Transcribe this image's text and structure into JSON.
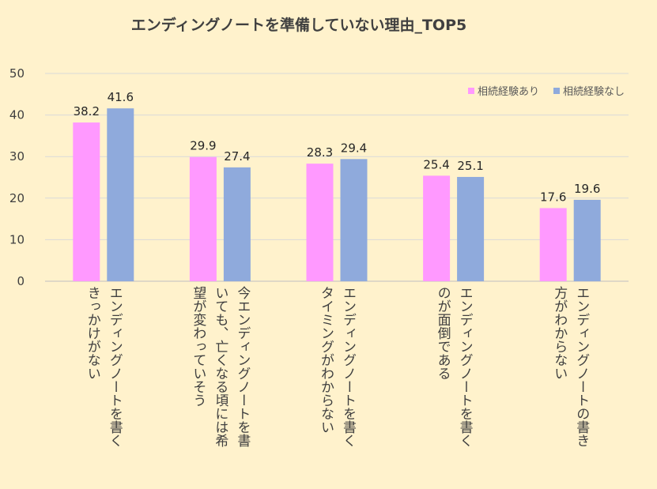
{
  "chart_data": {
    "type": "bar",
    "title": "エンディングノートを準備していない理由_TOP5",
    "categories": [
      "エンディングノートを書く\nきっかけがない",
      "今エンディングノートを書\nいても、亡くなる頃には希\n望が変わっていそう",
      "エンディングノートを書く\nタイミングがわからない",
      "エンディングノートを書く\nのが面倒である",
      "エンディングノートの書き\n方がわからない"
    ],
    "series": [
      {
        "name": "相続経験あり",
        "values": [
          38.2,
          29.9,
          28.3,
          25.4,
          17.6
        ],
        "color": "#ff99ff"
      },
      {
        "name": "相続経験なし",
        "values": [
          41.6,
          27.4,
          29.4,
          25.1,
          19.6
        ],
        "color": "#8faadc"
      }
    ],
    "ylim": [
      0,
      50
    ],
    "yticks": [
      0,
      10,
      20,
      30,
      40,
      50
    ],
    "grid": true,
    "legend": "top-right",
    "xlabel": "",
    "ylabel": ""
  },
  "colors": {
    "background": "#fff2cc",
    "gridline": "#d9d9d9",
    "axis": "#bfbfbf"
  }
}
